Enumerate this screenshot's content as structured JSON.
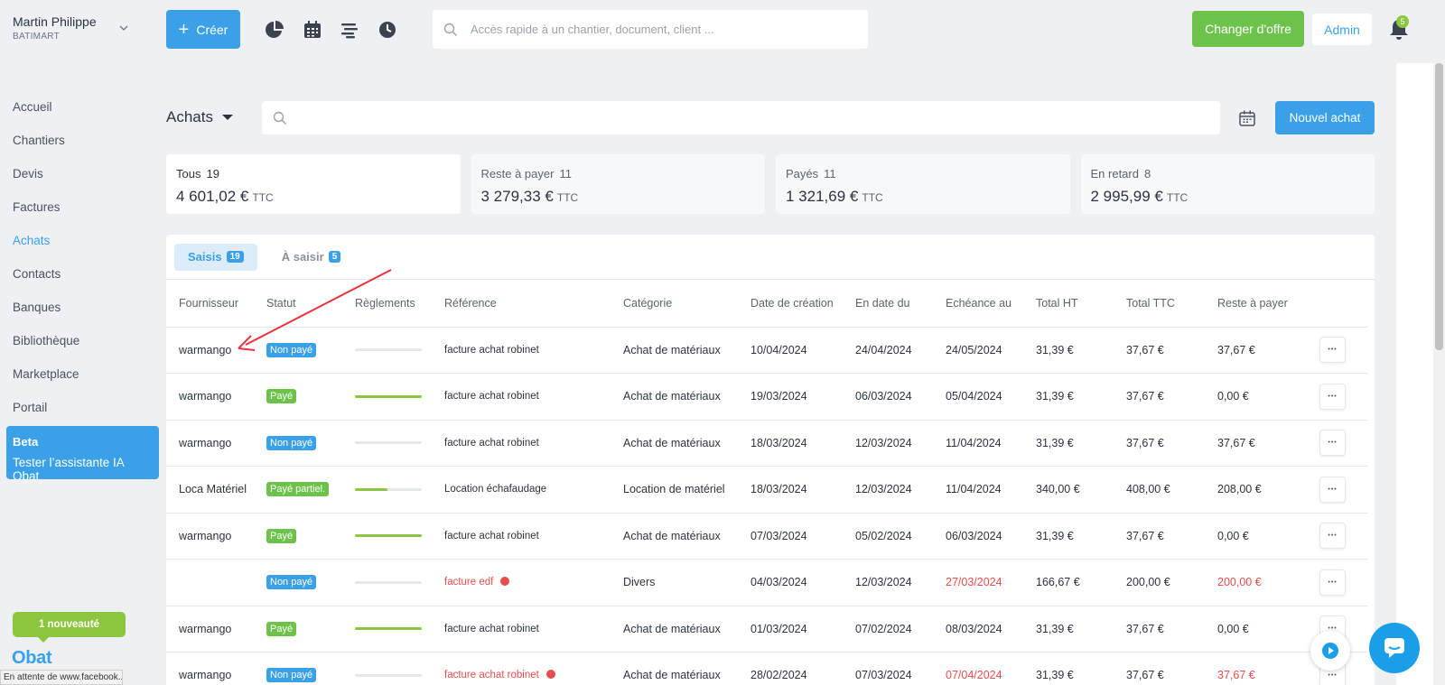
{
  "user": {
    "name": "Martin Philippe",
    "company": "BATIMART"
  },
  "header": {
    "create_label": "Créer",
    "search_placeholder": "Accès rapide à un chantier, document, client ...",
    "offer_label": "Changer d'offre",
    "admin_label": "Admin",
    "notification_count": "5"
  },
  "sidebar": {
    "items": [
      {
        "label": "Accueil",
        "name": "accueil"
      },
      {
        "label": "Chantiers",
        "name": "chantiers"
      },
      {
        "label": "Devis",
        "name": "devis"
      },
      {
        "label": "Factures",
        "name": "factures"
      },
      {
        "label": "Achats",
        "name": "achats",
        "active": true
      },
      {
        "label": "Contacts",
        "name": "contacts"
      },
      {
        "label": "Banques",
        "name": "banques"
      },
      {
        "label": "Bibliothèque",
        "name": "bibliotheque"
      },
      {
        "label": "Marketplace",
        "name": "marketplace"
      },
      {
        "label": "Portail",
        "name": "portail"
      }
    ],
    "beta_title": "Beta",
    "beta_text": "Tester l’assistante IA Obat",
    "news_label": "1 nouveauté",
    "logo_text": "Obat"
  },
  "status_bar": "En attente de www.facebook...",
  "page": {
    "title": "Achats",
    "new_label": "Nouvel achat"
  },
  "cards": [
    {
      "label": "Tous",
      "count": "19",
      "amount": "4 601,02 €",
      "suffix": "TTC"
    },
    {
      "label": "Reste à payer",
      "count": "11",
      "amount": "3 279,33 €",
      "suffix": "TTC"
    },
    {
      "label": "Payés",
      "count": "11",
      "amount": "1 321,69 €",
      "suffix": "TTC"
    },
    {
      "label": "En retard",
      "count": "8",
      "amount": "2 995,99 €",
      "suffix": "TTC"
    }
  ],
  "tabs": [
    {
      "label": "Saisis",
      "badge": "19",
      "active": true
    },
    {
      "label": "À saisir",
      "badge": "5",
      "active": false
    }
  ],
  "columns": [
    "Fournisseur",
    "Statut",
    "Règlements",
    "Référence",
    "Catégorie",
    "Date de création",
    "En date du",
    "Echéance au",
    "Total HT",
    "Total TTC",
    "Reste à payer"
  ],
  "colors": {
    "accent": "#3aa0e8",
    "paid": "#6cc24a",
    "unpaid": "#3aa0e8",
    "late": "#e84e4e"
  },
  "rows": [
    {
      "fournisseur": "warmango",
      "statut": "Non payé",
      "status_type": "unpaid",
      "paid_fraction": 0,
      "reference": "facture achat robinet",
      "late": false,
      "categorie": "Achat de matériaux",
      "creation": "10/04/2024",
      "date_du": "24/04/2024",
      "echeance": "24/05/2024",
      "ht": "31,39 €",
      "ttc": "37,67 €",
      "reste": "37,67 €"
    },
    {
      "fournisseur": "warmango",
      "statut": "Payé",
      "status_type": "paid",
      "paid_fraction": 1,
      "reference": "facture achat robinet",
      "late": false,
      "categorie": "Achat de matériaux",
      "creation": "19/03/2024",
      "date_du": "06/03/2024",
      "echeance": "05/04/2024",
      "ht": "31,39 €",
      "ttc": "37,67 €",
      "reste": "0,00 €"
    },
    {
      "fournisseur": "warmango",
      "statut": "Non payé",
      "status_type": "unpaid",
      "paid_fraction": 0,
      "reference": "facture achat robinet",
      "late": false,
      "categorie": "Achat de matériaux",
      "creation": "18/03/2024",
      "date_du": "12/03/2024",
      "echeance": "11/04/2024",
      "ht": "31,39 €",
      "ttc": "37,67 €",
      "reste": "37,67 €"
    },
    {
      "fournisseur": "Loca Matériel",
      "statut": "Payé partiel.",
      "status_type": "paid",
      "paid_fraction": 0.49,
      "reference": "Location échafaudage",
      "late": false,
      "categorie": "Location de matériel",
      "creation": "18/03/2024",
      "date_du": "12/03/2024",
      "echeance": "11/04/2024",
      "ht": "340,00 €",
      "ttc": "408,00 €",
      "reste": "208,00 €"
    },
    {
      "fournisseur": "warmango",
      "statut": "Payé",
      "status_type": "paid",
      "paid_fraction": 1,
      "reference": "facture achat robinet",
      "late": false,
      "categorie": "Achat de matériaux",
      "creation": "07/03/2024",
      "date_du": "05/02/2024",
      "echeance": "06/03/2024",
      "ht": "31,39 €",
      "ttc": "37,67 €",
      "reste": "0,00 €"
    },
    {
      "fournisseur": "",
      "statut": "Non payé",
      "status_type": "unpaid",
      "paid_fraction": 0,
      "reference": "facture edf",
      "late": true,
      "categorie": "Divers",
      "creation": "04/03/2024",
      "date_du": "12/03/2024",
      "echeance": "27/03/2024",
      "ht": "166,67 €",
      "ttc": "200,00 €",
      "reste": "200,00 €"
    },
    {
      "fournisseur": "warmango",
      "statut": "Payé",
      "status_type": "paid",
      "paid_fraction": 1,
      "reference": "facture achat robinet",
      "late": false,
      "categorie": "Achat de matériaux",
      "creation": "01/03/2024",
      "date_du": "07/02/2024",
      "echeance": "08/03/2024",
      "ht": "31,39 €",
      "ttc": "37,67 €",
      "reste": "0,00 €"
    },
    {
      "fournisseur": "warmango",
      "statut": "Non payé",
      "status_type": "unpaid",
      "paid_fraction": 0,
      "reference": "facture achat robinet",
      "late": true,
      "categorie": "Achat de matériaux",
      "creation": "28/02/2024",
      "date_du": "07/03/2024",
      "echeance": "07/04/2024",
      "ht": "31,39 €",
      "ttc": "37,67 €",
      "reste": "37,67 €"
    }
  ]
}
